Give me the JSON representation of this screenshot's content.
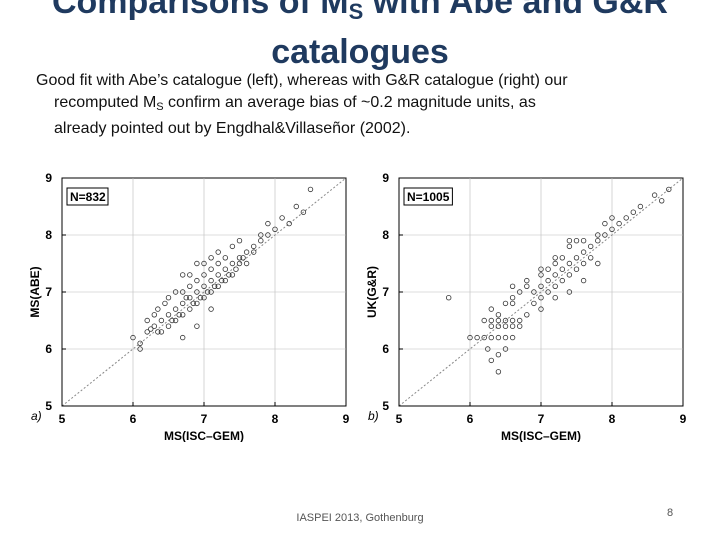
{
  "slide": {
    "title_line1_pre": "Comparisons of M",
    "title_sub": "S",
    "title_line1_post": " with Abe and G&R",
    "title_line2": "catalogues",
    "body_line1": "Good fit with Abe’s catalogue (left), whereas with G&R catalogue (right) our",
    "body_line2_pre": "recomputed M",
    "body_line2_sub": "S",
    "body_line2_post": " confirm an average bias of ~0.2 magnitude units, as",
    "body_line3": "already pointed out by  Engdhal&Villaseñor (2002).",
    "footer": "IASPEI 2013, Gothenburg",
    "page_number": "8"
  },
  "colors": {
    "title": "#1f3a5f",
    "points": "#333333",
    "one_to_one_line": "#888888"
  },
  "chart_data": [
    {
      "type": "scatter",
      "panel_label": "a)",
      "annotation": "N=832",
      "xlabel": "MS(ISC–GEM)",
      "ylabel": "MS(ABE)",
      "xlim": [
        5,
        9
      ],
      "ylim": [
        5,
        9
      ],
      "xticks": [
        5,
        6,
        7,
        8,
        9
      ],
      "yticks": [
        5,
        6,
        7,
        8,
        9
      ],
      "grid": true,
      "reference_line": "y = x (dotted)",
      "series": [
        {
          "points": [
            [
              6.0,
              6.2
            ],
            [
              6.1,
              6.1
            ],
            [
              6.2,
              6.5
            ],
            [
              6.2,
              6.3
            ],
            [
              6.25,
              6.35
            ],
            [
              6.3,
              6.4
            ],
            [
              6.3,
              6.6
            ],
            [
              6.35,
              6.3
            ],
            [
              6.35,
              6.7
            ],
            [
              6.4,
              6.5
            ],
            [
              6.4,
              6.3
            ],
            [
              6.45,
              6.8
            ],
            [
              6.5,
              6.6
            ],
            [
              6.5,
              6.4
            ],
            [
              6.5,
              6.9
            ],
            [
              6.55,
              6.5
            ],
            [
              6.6,
              6.7
            ],
            [
              6.6,
              6.5
            ],
            [
              6.6,
              7.0
            ],
            [
              6.65,
              6.6
            ],
            [
              6.7,
              6.8
            ],
            [
              6.7,
              6.6
            ],
            [
              6.7,
              7.0
            ],
            [
              6.7,
              7.3
            ],
            [
              6.75,
              6.9
            ],
            [
              6.8,
              6.7
            ],
            [
              6.8,
              6.9
            ],
            [
              6.8,
              7.1
            ],
            [
              6.8,
              7.3
            ],
            [
              6.85,
              6.8
            ],
            [
              6.9,
              7.0
            ],
            [
              6.9,
              6.8
            ],
            [
              6.9,
              7.2
            ],
            [
              6.9,
              7.5
            ],
            [
              6.95,
              6.9
            ],
            [
              7.0,
              7.1
            ],
            [
              7.0,
              6.9
            ],
            [
              7.0,
              7.3
            ],
            [
              7.0,
              7.5
            ],
            [
              7.05,
              7.0
            ],
            [
              7.1,
              7.2
            ],
            [
              7.1,
              7.0
            ],
            [
              7.1,
              7.4
            ],
            [
              7.1,
              7.6
            ],
            [
              7.15,
              7.1
            ],
            [
              7.2,
              7.3
            ],
            [
              7.2,
              7.1
            ],
            [
              7.2,
              7.5
            ],
            [
              7.2,
              7.7
            ],
            [
              7.25,
              7.2
            ],
            [
              7.3,
              7.4
            ],
            [
              7.3,
              7.2
            ],
            [
              7.3,
              7.6
            ],
            [
              7.35,
              7.3
            ],
            [
              7.4,
              7.5
            ],
            [
              7.4,
              7.3
            ],
            [
              7.4,
              7.8
            ],
            [
              7.45,
              7.4
            ],
            [
              7.5,
              7.6
            ],
            [
              7.5,
              7.5
            ],
            [
              7.5,
              7.9
            ],
            [
              7.55,
              7.6
            ],
            [
              7.6,
              7.7
            ],
            [
              7.6,
              7.5
            ],
            [
              7.7,
              7.8
            ],
            [
              7.7,
              7.7
            ],
            [
              7.8,
              7.9
            ],
            [
              7.8,
              8.0
            ],
            [
              7.9,
              8.0
            ],
            [
              7.9,
              8.2
            ],
            [
              8.0,
              8.1
            ],
            [
              8.1,
              8.3
            ],
            [
              8.2,
              8.2
            ],
            [
              8.3,
              8.5
            ],
            [
              8.5,
              8.8
            ],
            [
              8.4,
              8.4
            ],
            [
              6.7,
              6.2
            ],
            [
              6.9,
              6.4
            ],
            [
              7.1,
              6.7
            ],
            [
              6.1,
              6.0
            ]
          ]
        }
      ]
    },
    {
      "type": "scatter",
      "panel_label": "b)",
      "annotation": "N=1005",
      "xlabel": "MS(ISC–GEM)",
      "ylabel": "UK(G&R)",
      "xlim": [
        5,
        9
      ],
      "ylim": [
        5,
        9
      ],
      "xticks": [
        5,
        6,
        7,
        8,
        9
      ],
      "yticks": [
        5,
        6,
        7,
        8,
        9
      ],
      "grid": true,
      "reference_line": "y = x (dotted)",
      "series": [
        {
          "points": [
            [
              5.7,
              6.9
            ],
            [
              6.0,
              6.2
            ],
            [
              6.1,
              6.2
            ],
            [
              6.2,
              6.2
            ],
            [
              6.3,
              6.2
            ],
            [
              6.4,
              6.2
            ],
            [
              6.5,
              6.2
            ],
            [
              6.6,
              6.2
            ],
            [
              6.25,
              6.0
            ],
            [
              6.3,
              5.8
            ],
            [
              6.4,
              5.9
            ],
            [
              6.5,
              6.0
            ],
            [
              6.3,
              6.4
            ],
            [
              6.4,
              6.4
            ],
            [
              6.5,
              6.4
            ],
            [
              6.6,
              6.4
            ],
            [
              6.7,
              6.4
            ],
            [
              6.2,
              6.5
            ],
            [
              6.3,
              6.5
            ],
            [
              6.4,
              6.5
            ],
            [
              6.5,
              6.5
            ],
            [
              6.6,
              6.5
            ],
            [
              6.7,
              6.5
            ],
            [
              6.4,
              5.6
            ],
            [
              6.3,
              6.7
            ],
            [
              6.5,
              6.8
            ],
            [
              6.6,
              6.9
            ],
            [
              6.7,
              7.0
            ],
            [
              6.8,
              7.1
            ],
            [
              6.9,
              7.0
            ],
            [
              6.9,
              6.8
            ],
            [
              7.0,
              7.1
            ],
            [
              7.0,
              6.9
            ],
            [
              7.0,
              7.3
            ],
            [
              7.1,
              7.2
            ],
            [
              7.1,
              7.0
            ],
            [
              7.1,
              7.4
            ],
            [
              7.2,
              7.3
            ],
            [
              7.2,
              7.1
            ],
            [
              7.2,
              7.5
            ],
            [
              7.3,
              7.4
            ],
            [
              7.3,
              7.2
            ],
            [
              7.3,
              7.6
            ],
            [
              7.4,
              7.5
            ],
            [
              7.4,
              7.3
            ],
            [
              7.4,
              7.8
            ],
            [
              7.5,
              7.6
            ],
            [
              7.5,
              7.4
            ],
            [
              7.5,
              7.9
            ],
            [
              7.6,
              7.7
            ],
            [
              7.6,
              7.5
            ],
            [
              7.7,
              7.8
            ],
            [
              7.7,
              7.6
            ],
            [
              7.8,
              7.9
            ],
            [
              7.8,
              8.0
            ],
            [
              7.9,
              8.0
            ],
            [
              7.9,
              8.2
            ],
            [
              8.0,
              8.1
            ],
            [
              8.0,
              8.3
            ],
            [
              8.1,
              8.2
            ],
            [
              8.2,
              8.3
            ],
            [
              8.3,
              8.4
            ],
            [
              8.4,
              8.5
            ],
            [
              8.6,
              8.7
            ],
            [
              8.7,
              8.6
            ],
            [
              8.8,
              8.8
            ],
            [
              6.8,
              6.6
            ],
            [
              7.0,
              6.7
            ],
            [
              7.2,
              6.9
            ],
            [
              7.4,
              7.0
            ],
            [
              7.6,
              7.2
            ],
            [
              7.8,
              7.5
            ],
            [
              6.6,
              7.1
            ],
            [
              6.8,
              7.2
            ],
            [
              7.0,
              7.4
            ],
            [
              7.2,
              7.6
            ],
            [
              7.4,
              7.9
            ],
            [
              7.6,
              7.9
            ],
            [
              6.4,
              6.6
            ],
            [
              6.6,
              6.8
            ]
          ]
        }
      ]
    }
  ]
}
